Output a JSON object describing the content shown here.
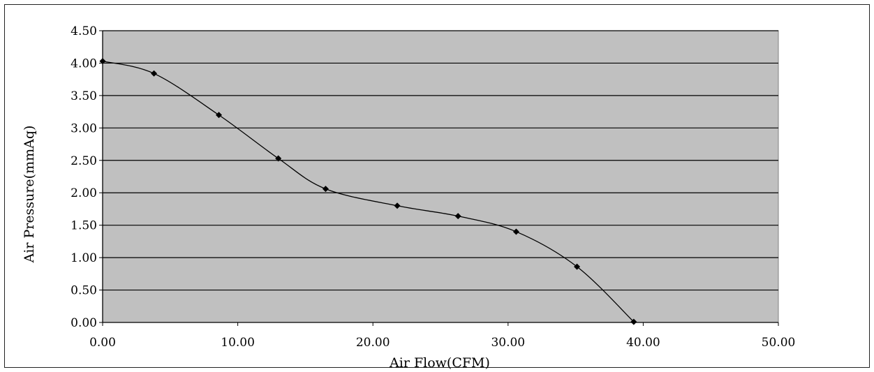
{
  "chart_data": {
    "type": "scatter",
    "title": "",
    "xlabel": "Air Flow(CFM)",
    "ylabel": "Air Pressure(mmAq)",
    "xlim": [
      0,
      50
    ],
    "ylim": [
      0,
      4.5
    ],
    "xticks": [
      "0.00",
      "10.00",
      "20.00",
      "30.00",
      "40.00",
      "50.00"
    ],
    "yticks": [
      "0.00",
      "0.50",
      "1.00",
      "1.50",
      "2.00",
      "2.50",
      "3.00",
      "3.50",
      "4.00",
      "4.50"
    ],
    "grid": "horizontal",
    "smooth_line": true,
    "marker": "diamond",
    "plot_background": "#c0c0c0",
    "line_color": "#000000",
    "series": [
      {
        "x": [
          0.0,
          3.8,
          8.6,
          13.0,
          16.5,
          21.8,
          26.3,
          30.6,
          35.1,
          39.3
        ],
        "y": [
          4.03,
          3.84,
          3.2,
          2.53,
          2.06,
          1.8,
          1.64,
          1.4,
          0.86,
          0.01
        ]
      }
    ]
  }
}
